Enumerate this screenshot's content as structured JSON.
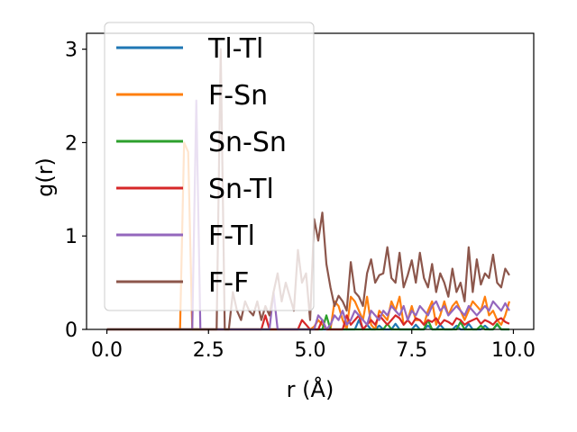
{
  "chart_data": {
    "type": "line",
    "title": "",
    "xlabel": "r (Å)",
    "ylabel": "g(r)",
    "xlim": [
      -0.5,
      10.5
    ],
    "ylim": [
      0,
      3.17
    ],
    "x_ticks": [
      0.0,
      2.5,
      5.0,
      7.5,
      10.0
    ],
    "x_tick_labels": [
      "0.0",
      "2.5",
      "5.0",
      "7.5",
      "10.0"
    ],
    "y_ticks": [
      0,
      1,
      2,
      3
    ],
    "y_tick_labels": [
      "0",
      "1",
      "2",
      "3"
    ],
    "grid": false,
    "legend_position": "upper-left",
    "x_grid": {
      "start": 0.0,
      "step": 0.1,
      "count": 100
    },
    "series": [
      {
        "name": "Tl-Tl",
        "color": "#1f77b4",
        "values": [
          0,
          0,
          0,
          0,
          0,
          0,
          0,
          0,
          0,
          0,
          0,
          0,
          0,
          0,
          0,
          0,
          0,
          0,
          0,
          0,
          0,
          0,
          0,
          0,
          0,
          0,
          0,
          0,
          0,
          0,
          0,
          0,
          0,
          0,
          0,
          0,
          0,
          0,
          0,
          0,
          0,
          0,
          0,
          0,
          0,
          0,
          0,
          0,
          0,
          0,
          0,
          0,
          0,
          0,
          0,
          0,
          0,
          0,
          0,
          0,
          0,
          0,
          0.1,
          0,
          0.05,
          0,
          0,
          0.04,
          0,
          0,
          0,
          0.06,
          0,
          0,
          0,
          0,
          0.05,
          0,
          0,
          0.04,
          0,
          0,
          0.05,
          0,
          0,
          0,
          0.04,
          0,
          0,
          0.06,
          0,
          0,
          0,
          0.04,
          0,
          0,
          0.05,
          0,
          0,
          0
        ]
      },
      {
        "name": "F-Sn",
        "color": "#ff7f0e",
        "values": [
          0,
          0,
          0,
          0,
          0,
          0,
          0,
          0,
          0,
          0,
          0,
          0,
          0,
          0,
          0,
          0,
          0,
          0,
          0,
          2.0,
          1.9,
          0,
          0,
          0,
          0,
          0,
          0,
          0,
          0,
          0,
          0,
          0,
          0,
          0,
          0,
          0,
          0,
          0,
          0,
          0,
          0,
          0,
          0,
          0,
          0,
          0,
          0,
          0,
          0,
          0,
          0,
          0.03,
          0.1,
          0.05,
          0,
          0,
          0.3,
          0.25,
          0.1,
          0,
          0.35,
          0.3,
          0.2,
          0.1,
          0.35,
          0.05,
          0,
          0.2,
          0.15,
          0.1,
          0.3,
          0.2,
          0.35,
          0.05,
          0.1,
          0.25,
          0.1,
          0.1,
          0.05,
          0.2,
          0.3,
          0.05,
          0.15,
          0.3,
          0.15,
          0.25,
          0.3,
          0.2,
          0.1,
          0.2,
          0.3,
          0.25,
          0.2,
          0.35,
          0.15,
          0.2,
          0.1,
          0.05,
          0.15,
          0.3
        ]
      },
      {
        "name": "Sn-Sn",
        "color": "#2ca02c",
        "values": [
          0,
          0,
          0,
          0,
          0,
          0,
          0,
          0,
          0,
          0,
          0,
          0,
          0,
          0,
          0,
          0,
          0,
          0,
          0,
          0,
          0,
          0,
          0,
          0,
          0,
          0,
          0,
          0,
          0,
          0,
          0,
          0,
          0,
          0,
          0,
          0,
          0,
          0,
          0,
          0,
          0,
          0,
          0,
          0,
          0,
          0,
          0,
          0,
          0,
          0,
          0,
          0,
          0,
          0,
          0.15,
          0,
          0,
          0,
          0,
          0,
          0,
          0,
          0,
          0,
          0,
          0,
          0,
          0,
          0,
          0.06,
          0,
          0,
          0,
          0,
          0,
          0,
          0,
          0,
          0,
          0.1,
          0,
          0,
          0,
          0,
          0,
          0,
          0,
          0.08,
          0,
          0,
          0,
          0,
          0.04,
          0,
          0,
          0,
          0.06,
          0,
          0,
          0
        ]
      },
      {
        "name": "Sn-Tl",
        "color": "#d62728",
        "values": [
          0,
          0,
          0,
          0,
          0,
          0,
          0,
          0,
          0,
          0,
          0,
          0,
          0,
          0,
          0,
          0,
          0,
          0,
          0,
          0,
          0,
          0,
          0,
          0,
          0,
          0,
          0,
          0,
          0,
          0,
          0,
          0,
          0,
          0,
          0,
          0,
          0,
          0,
          0,
          0.15,
          0,
          0,
          0,
          0,
          0,
          0,
          0,
          0,
          0.1,
          0.05,
          0,
          0,
          0,
          0.1,
          0,
          0,
          0,
          0,
          0,
          0.15,
          0.05,
          0.1,
          0.15,
          0,
          0.05,
          0.1,
          0.05,
          0.15,
          0.1,
          0.05,
          0.1,
          0.15,
          0.12,
          0.05,
          0.1,
          0.05,
          0.12,
          0.1,
          0.05,
          0.1,
          0.08,
          0.12,
          0.05,
          0.1,
          0.08,
          0.05,
          0.12,
          0.1,
          0.05,
          0.08,
          0.1,
          0.12,
          0.06,
          0.1,
          0.08,
          0.05,
          0.1,
          0.12,
          0.08,
          0.06
        ]
      },
      {
        "name": "F-Tl",
        "color": "#9467bd",
        "values": [
          0,
          0,
          0,
          0,
          0,
          0,
          0,
          0,
          0,
          0,
          0,
          0,
          0,
          0,
          0,
          0,
          0,
          0,
          0,
          0,
          0,
          0,
          2.45,
          0,
          0,
          0,
          0,
          0,
          0,
          0,
          0,
          0,
          0,
          0,
          0,
          0,
          0,
          0,
          0,
          0,
          0,
          0.4,
          0,
          0,
          0,
          0,
          0,
          0,
          0,
          0,
          0,
          0,
          0.15,
          0.1,
          0,
          0.05,
          0.15,
          0.1,
          0.2,
          0.05,
          0.1,
          0.2,
          0.15,
          0.1,
          0.05,
          0.2,
          0.15,
          0.1,
          0.2,
          0.15,
          0.25,
          0.2,
          0.15,
          0.25,
          0.1,
          0.2,
          0.15,
          0.25,
          0.2,
          0.15,
          0.25,
          0.3,
          0.2,
          0.25,
          0.15,
          0.2,
          0.25,
          0.2,
          0.15,
          0.25,
          0.2,
          0.15,
          0.2,
          0.25,
          0.2,
          0.3,
          0.25,
          0.2,
          0.28,
          0.2
        ]
      },
      {
        "name": "F-F",
        "color": "#8c564b",
        "values": [
          0,
          0,
          0,
          0,
          0,
          0,
          0,
          0,
          0,
          0,
          0,
          0,
          0,
          0,
          0,
          0,
          0,
          0,
          0,
          0,
          0,
          0,
          0,
          0,
          0,
          0,
          0,
          0,
          3.0,
          0,
          0,
          0.4,
          0.2,
          0.1,
          0.3,
          0.2,
          0.15,
          0.3,
          0.1,
          0.25,
          0.15,
          0.4,
          0.6,
          0.3,
          0.5,
          0.35,
          0.2,
          0.85,
          0.5,
          0.6,
          0.1,
          1.18,
          0.95,
          1.25,
          0.7,
          0.45,
          0.25,
          0.36,
          0.3,
          0.2,
          0.72,
          0.4,
          0.35,
          0.25,
          0.6,
          0.75,
          0.5,
          0.58,
          0.6,
          0.88,
          0.55,
          0.5,
          0.82,
          0.45,
          0.58,
          0.74,
          0.5,
          0.82,
          0.55,
          0.45,
          0.7,
          0.4,
          0.6,
          0.5,
          0.35,
          0.65,
          0.4,
          0.5,
          0.3,
          0.88,
          0.4,
          0.75,
          0.48,
          0.6,
          0.55,
          0.8,
          0.5,
          0.45,
          0.65,
          0.58
        ]
      }
    ]
  }
}
